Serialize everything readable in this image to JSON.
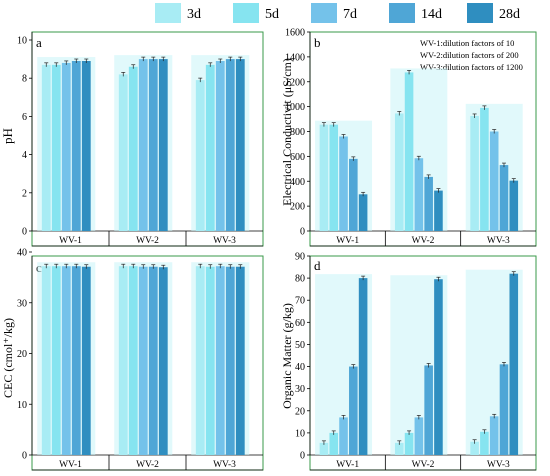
{
  "legend": {
    "position": "top",
    "entries": [
      {
        "label": "3d",
        "color": "#a8ecf4"
      },
      {
        "label": "5d",
        "color": "#86e4f0"
      },
      {
        "label": "7d",
        "color": "#74c2ea"
      },
      {
        "label": "14d",
        "color": "#4fa6d6"
      },
      {
        "label": "28d",
        "color": "#2f8ec0"
      }
    ]
  },
  "chart_data": [
    {
      "type": "bar",
      "panel_label": "a",
      "ylabel": "pH",
      "ylim": [
        0,
        10
      ],
      "yticks": [
        0,
        2,
        4,
        6,
        8,
        10
      ],
      "categories": [
        "WV-1",
        "WV-2",
        "WV-3"
      ],
      "series": [
        {
          "name": "3d",
          "values": [
            8.7,
            8.2,
            7.9
          ]
        },
        {
          "name": "5d",
          "values": [
            8.7,
            8.6,
            8.7
          ]
        },
        {
          "name": "7d",
          "values": [
            8.8,
            9.0,
            8.9
          ]
        },
        {
          "name": "14d",
          "values": [
            8.9,
            9.0,
            9.0
          ]
        },
        {
          "name": "28d",
          "values": [
            8.9,
            9.0,
            9.0
          ]
        }
      ]
    },
    {
      "type": "bar",
      "panel_label": "b",
      "ylabel": "Electrical Conductivit (μS/cm)",
      "ylim": [
        0,
        1600
      ],
      "yticks": [
        0,
        200,
        400,
        600,
        800,
        1000,
        1200,
        1400,
        1600
      ],
      "categories": [
        "WV-1",
        "WV-2",
        "WV-3"
      ],
      "annotations": [
        "WV-1:dilution factors of 10",
        "WV-2:dilution factors of 200",
        "WV-3:dilution factors of 1200"
      ],
      "series": [
        {
          "name": "3d",
          "values": [
            855,
            945,
            925
          ]
        },
        {
          "name": "5d",
          "values": [
            855,
            1275,
            990
          ]
        },
        {
          "name": "7d",
          "values": [
            760,
            585,
            800
          ]
        },
        {
          "name": "14d",
          "values": [
            580,
            435,
            530
          ]
        },
        {
          "name": "28d",
          "values": [
            295,
            325,
            405
          ]
        }
      ]
    },
    {
      "type": "bar",
      "panel_label": "c",
      "ylabel": "CEC (cmol⁺/kg)",
      "ylim": [
        0,
        40
      ],
      "yticks": [
        0,
        10,
        20,
        30,
        40
      ],
      "categories": [
        "WV-1",
        "WV-2",
        "WV-3"
      ],
      "series": [
        {
          "name": "3d",
          "values": [
            37.2,
            37.2,
            37.2
          ]
        },
        {
          "name": "5d",
          "values": [
            37.2,
            37.2,
            37.1
          ]
        },
        {
          "name": "7d",
          "values": [
            37.2,
            37.1,
            37.2
          ]
        },
        {
          "name": "14d",
          "values": [
            37.2,
            37.1,
            37.1
          ]
        },
        {
          "name": "28d",
          "values": [
            37.1,
            37.0,
            37.1
          ]
        }
      ]
    },
    {
      "type": "bar",
      "panel_label": "d",
      "ylabel": "Organic Matter (g/kg)",
      "ylim": [
        0,
        90
      ],
      "yticks": [
        0,
        10,
        20,
        30,
        40,
        50,
        60,
        70,
        80,
        90
      ],
      "categories": [
        "WV-1",
        "WV-2",
        "WV-3"
      ],
      "series": [
        {
          "name": "3d",
          "values": [
            5.5,
            5.5,
            6.0
          ]
        },
        {
          "name": "5d",
          "values": [
            10.0,
            10.0,
            10.5
          ]
        },
        {
          "name": "7d",
          "values": [
            17.0,
            17.0,
            17.5
          ]
        },
        {
          "name": "14d",
          "values": [
            40.0,
            40.5,
            41.0
          ]
        },
        {
          "name": "28d",
          "values": [
            80.0,
            79.5,
            82.0
          ]
        }
      ]
    }
  ]
}
